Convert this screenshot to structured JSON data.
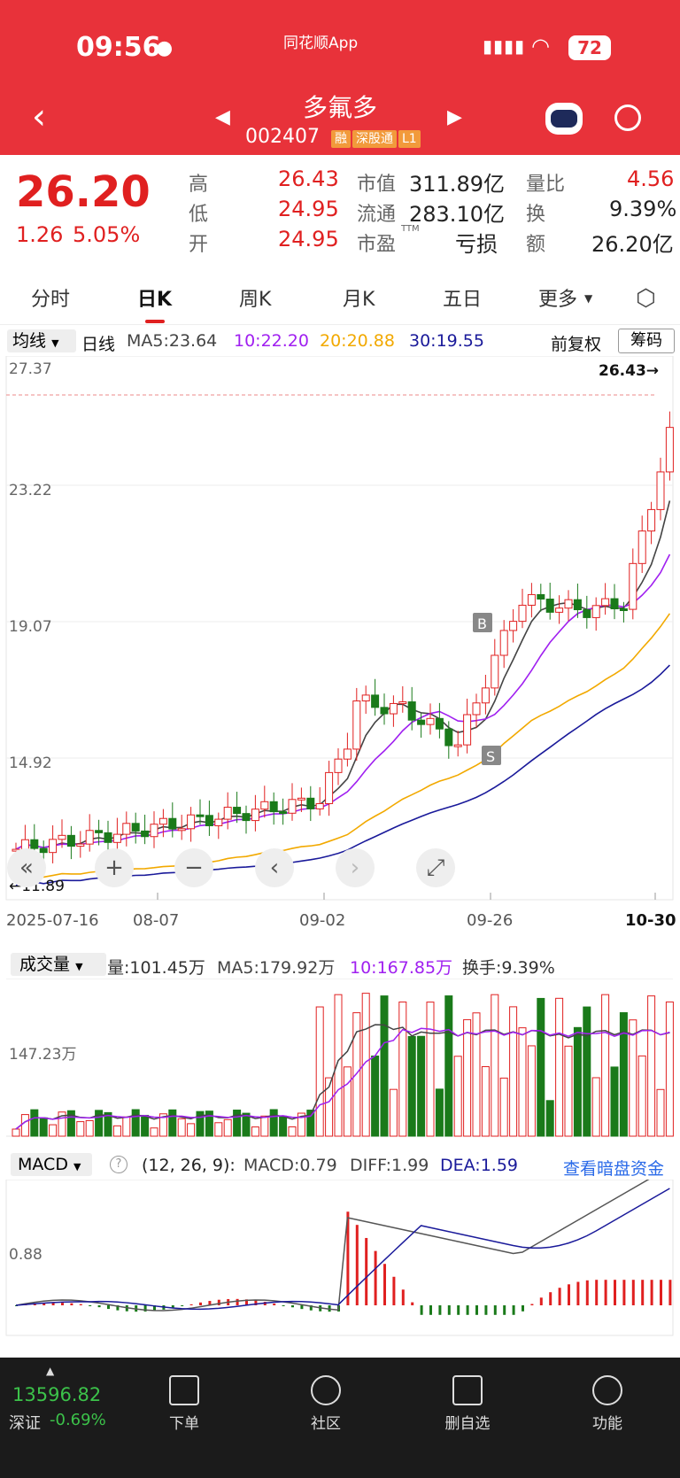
{
  "status": {
    "time": "09:56",
    "app": "同花顺App",
    "battery": "72"
  },
  "header": {
    "name": "多氟多",
    "code": "002407",
    "tags": [
      "融",
      "深股通",
      "L1"
    ]
  },
  "quote": {
    "price": "26.20",
    "change": "1.26",
    "change_pct": "5.05%",
    "stats": [
      {
        "label": "高",
        "value": "26.43",
        "color": "red"
      },
      {
        "label": "低",
        "value": "24.95",
        "color": "red"
      },
      {
        "label": "开",
        "value": "24.95",
        "color": "red"
      },
      {
        "label": "市值",
        "value": "311.89亿",
        "color": "dark"
      },
      {
        "label": "流通",
        "value": "283.10亿",
        "color": "dark"
      },
      {
        "label": "市盈",
        "value": "亏损",
        "color": "dark",
        "sup": "TTM"
      },
      {
        "label": "量比",
        "value": "4.56",
        "color": "red"
      },
      {
        "label": "换",
        "value": "9.39%",
        "color": "dark"
      },
      {
        "label": "额",
        "value": "26.20亿",
        "color": "dark"
      }
    ]
  },
  "tabs": [
    "分时",
    "日K",
    "周K",
    "月K",
    "五日",
    "更多"
  ],
  "active_tab": "日K",
  "kline": {
    "legend": {
      "selector": "均线",
      "period": "日线",
      "ma5": "MA5:23.64",
      "ma10": "10:22.20",
      "ma20": "20:20.88",
      "ma30": "30:19.55"
    },
    "adjust": "前复权",
    "chip_button": "筹码",
    "y_labels": [
      "27.37",
      "23.22",
      "19.07",
      "14.92"
    ],
    "high_label": "26.43→",
    "low_label": "←11.89",
    "dates": [
      "2025-07-16",
      "08-07",
      "09-02",
      "09-26",
      "10-30"
    ],
    "markers": {
      "buy": "B",
      "sell": "S"
    },
    "colors": {
      "up": "#e02020",
      "down": "#1a7a1a",
      "ma5": "#444444",
      "ma10": "#a020f0",
      "ma20": "#f2a900",
      "ma30": "#1a1a9a"
    }
  },
  "volume": {
    "selector": "成交量",
    "vol": "量:101.45万",
    "ma5": "MA5:179.92万",
    "ma10": "10:167.85万",
    "turnover": "换手:9.39%",
    "y_label": "147.23万"
  },
  "macd": {
    "selector": "MACD",
    "params": "(12, 26, 9):",
    "macd": "MACD:0.79",
    "diff": "DIFF:1.99",
    "dea": "DEA:1.59",
    "link": "查看暗盘资金",
    "y_label": "0.88"
  },
  "bottom": {
    "index_value": "13596.82",
    "index_name": "深证",
    "index_change": "-0.69%",
    "nav": [
      "下单",
      "社区",
      "删自选",
      "功能"
    ]
  }
}
